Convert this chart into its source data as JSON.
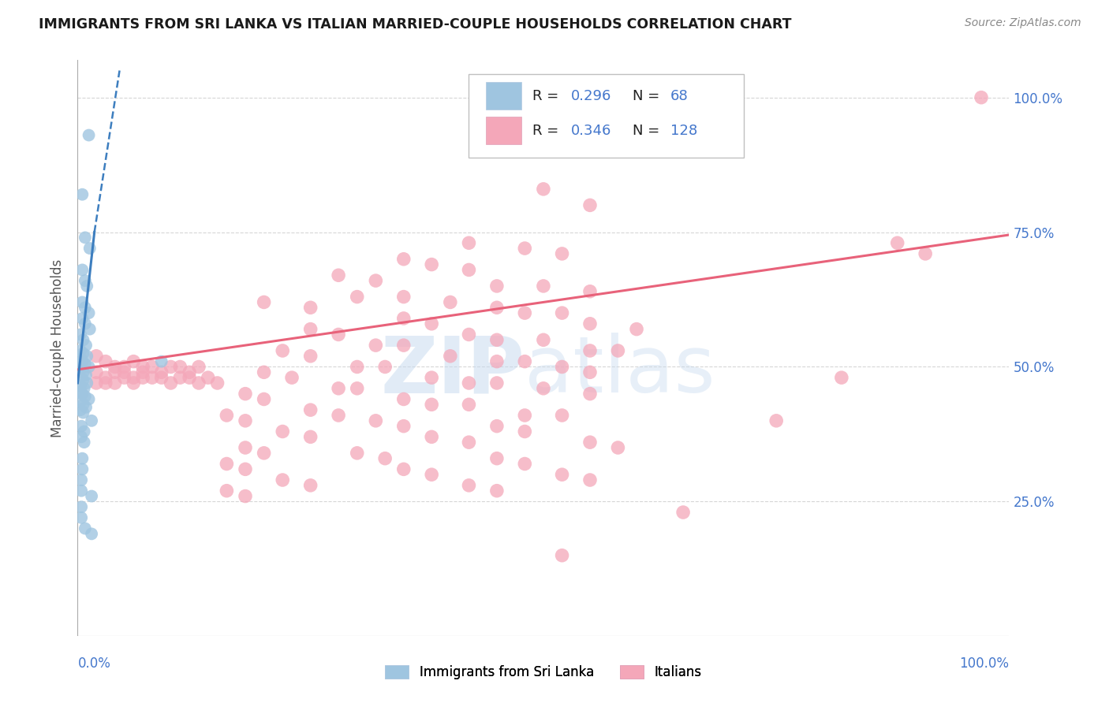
{
  "title": "IMMIGRANTS FROM SRI LANKA VS ITALIAN MARRIED-COUPLE HOUSEHOLDS CORRELATION CHART",
  "source": "Source: ZipAtlas.com",
  "ylabel": "Married-couple Households",
  "legend_bottom": [
    "Immigrants from Sri Lanka",
    "Italians"
  ],
  "sri_lanka_color": "#9fc5e0",
  "italians_color": "#f4a7b9",
  "sri_lanka_line_color": "#3d7ebf",
  "italians_line_color": "#e8627a",
  "background_color": "#ffffff",
  "grid_color": "#cccccc",
  "blue_text_color": "#4477cc",
  "title_color": "#1a1a1a",
  "source_color": "#888888",
  "ylabel_color": "#555555",
  "ytick_positions": [
    25,
    50,
    75,
    100
  ],
  "ytick_labels": [
    "25.0%",
    "50.0%",
    "75.0%",
    "100.0%"
  ],
  "xlim": [
    0,
    100
  ],
  "ylim": [
    0,
    107
  ],
  "sl_trend_x0": 0.0,
  "sl_trend_y0": 47.0,
  "sl_trend_x1": 1.8,
  "sl_trend_y1": 75.0,
  "sl_trend_dash_x0": 1.8,
  "sl_trend_dash_y0": 75.0,
  "sl_trend_dash_x1": 4.5,
  "sl_trend_dash_y1": 105.0,
  "it_trend_x0": 0.0,
  "it_trend_y0": 49.5,
  "it_trend_x1": 100.0,
  "it_trend_y1": 74.5,
  "watermark_zip_color": "#c5d9ef",
  "watermark_atlas_color": "#c5d9ef"
}
